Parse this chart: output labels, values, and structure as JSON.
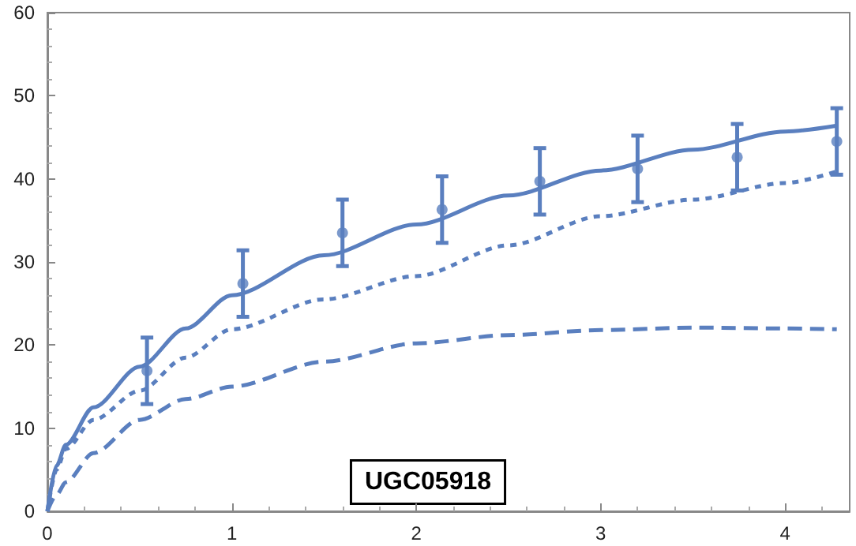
{
  "chart_data": {
    "type": "line",
    "xlim": [
      0,
      4.35
    ],
    "ylim": [
      0,
      60
    ],
    "xticks": [
      0,
      1,
      2,
      3,
      4
    ],
    "yticks": [
      0,
      10,
      20,
      30,
      40,
      50,
      60
    ],
    "grid": false,
    "annotations": [
      "UGC05918"
    ],
    "series": [
      {
        "type": "scatter",
        "color": "#5a7fbf",
        "marker": "circle",
        "x": [
          0.54,
          1.06,
          1.6,
          2.14,
          2.67,
          3.2,
          3.74,
          4.28
        ],
        "values": [
          16.9,
          27.4,
          33.5,
          36.3,
          39.7,
          41.2,
          42.6,
          44.5
        ],
        "errors": [
          4,
          4,
          4,
          4,
          4,
          4,
          4,
          4
        ]
      },
      {
        "color": "#5a7fbf",
        "line_style": "solid",
        "marker": "none",
        "x": [
          0,
          0.05,
          0.1,
          0.25,
          0.5,
          0.75,
          1,
          1.5,
          2,
          2.5,
          3,
          3.5,
          4,
          4.28
        ],
        "values": [
          0,
          5.5,
          8,
          12.5,
          17.4,
          22,
          26,
          30.8,
          34.5,
          38,
          41,
          43.5,
          45.7,
          46.4
        ]
      },
      {
        "color": "#5a7fbf",
        "line_style": "dotted",
        "marker": "none",
        "x": [
          0,
          0.05,
          0.1,
          0.25,
          0.5,
          0.75,
          1,
          1.5,
          2,
          2.5,
          3,
          3.5,
          4,
          4.28
        ],
        "values": [
          0,
          5,
          7.5,
          11,
          14.5,
          18.5,
          21.9,
          25.5,
          28.3,
          32,
          35.5,
          37.5,
          39.5,
          40.9
        ]
      },
      {
        "color": "#5a7fbf",
        "line_style": "dashed",
        "marker": "none",
        "x": [
          0,
          0.05,
          0.1,
          0.25,
          0.5,
          0.75,
          1,
          1.5,
          2,
          2.5,
          3,
          3.5,
          4,
          4.28
        ],
        "values": [
          0,
          2,
          3.5,
          7,
          11,
          13.5,
          15,
          18,
          20.2,
          21.2,
          21.8,
          22.1,
          22,
          21.9
        ]
      }
    ]
  }
}
